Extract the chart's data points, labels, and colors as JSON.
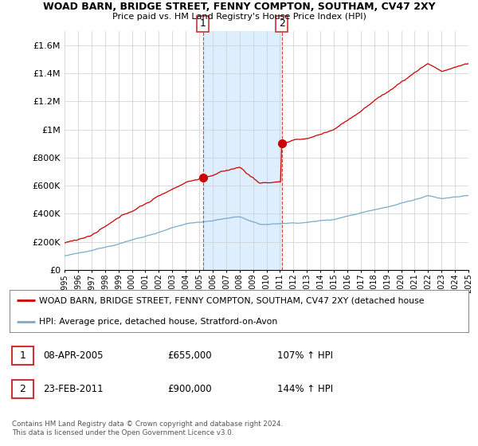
{
  "title": "WOAD BARN, BRIDGE STREET, FENNY COMPTON, SOUTHAM, CV47 2XY",
  "subtitle": "Price paid vs. HM Land Registry's House Price Index (HPI)",
  "background_color": "#ffffff",
  "plot_bg_color": "#ffffff",
  "grid_color": "#cccccc",
  "ylim": [
    0,
    1700000
  ],
  "yticks": [
    0,
    200000,
    400000,
    600000,
    800000,
    1000000,
    1200000,
    1400000,
    1600000
  ],
  "ytick_labels": [
    "£0",
    "£200K",
    "£400K",
    "£600K",
    "£800K",
    "£1M",
    "£1.2M",
    "£1.4M",
    "£1.6M"
  ],
  "year_start": 1995,
  "year_end": 2025,
  "t1_year": 2005.27,
  "t1_price": 655000,
  "t1_date": "08-APR-2005",
  "t1_hpi": "107%",
  "t2_year": 2011.13,
  "t2_price": 900000,
  "t2_date": "23-FEB-2011",
  "t2_hpi": "144%",
  "legend_line1": "WOAD BARN, BRIDGE STREET, FENNY COMPTON, SOUTHAM, CV47 2XY (detached house",
  "legend_line2": "HPI: Average price, detached house, Stratford-on-Avon",
  "footer": "Contains HM Land Registry data © Crown copyright and database right 2024.\nThis data is licensed under the Open Government Licence v3.0.",
  "red_color": "#cc0000",
  "blue_color": "#7aaacc",
  "vline_color": "#cc4444",
  "shade_color": "#ddeeff"
}
